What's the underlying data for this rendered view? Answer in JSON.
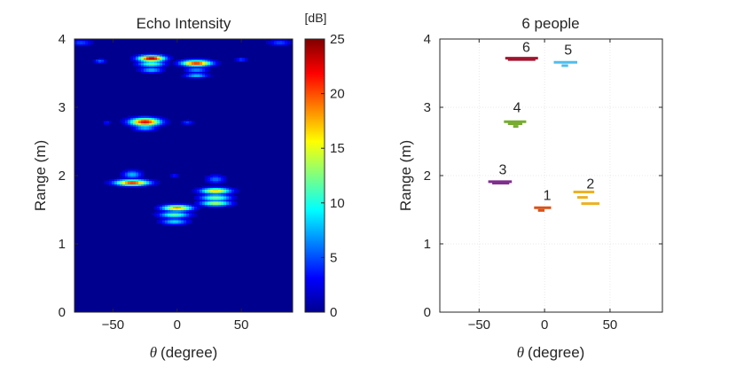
{
  "chart_data": [
    {
      "type": "heatmap",
      "title": "Echo Intensity",
      "xlabel_symbol": "θ",
      "xlabel": "(degree)",
      "ylabel": "Range (m)",
      "xlim": [
        -80,
        90
      ],
      "ylim": [
        0,
        4
      ],
      "xticks": [
        "-50",
        "0",
        "50"
      ],
      "yticks": [
        "0",
        "1",
        "2",
        "3",
        "4"
      ],
      "colorbar": {
        "unit": "[dB]",
        "range": [
          0,
          25
        ],
        "ticks": [
          "0",
          "5",
          "10",
          "15",
          "20",
          "25"
        ]
      },
      "colormap": [
        "#00008f",
        "#0000ff",
        "#0080ff",
        "#00ffff",
        "#80ff80",
        "#ffff00",
        "#ff8000",
        "#ff0000",
        "#800000"
      ],
      "blobs": [
        {
          "x": -20,
          "y": 3.72,
          "peak": 25,
          "sx": 7,
          "sy": 0.03
        },
        {
          "x": -20,
          "y": 3.64,
          "peak": 12,
          "sx": 7,
          "sy": 0.03
        },
        {
          "x": -20,
          "y": 3.55,
          "peak": 8,
          "sx": 6,
          "sy": 0.03
        },
        {
          "x": 15,
          "y": 3.65,
          "peak": 22,
          "sx": 8,
          "sy": 0.03
        },
        {
          "x": 15,
          "y": 3.55,
          "peak": 7,
          "sx": 6,
          "sy": 0.03
        },
        {
          "x": 15,
          "y": 3.47,
          "peak": 9,
          "sx": 6,
          "sy": 0.02
        },
        {
          "x": -25,
          "y": 2.79,
          "peak": 23,
          "sx": 8,
          "sy": 0.04
        },
        {
          "x": -25,
          "y": 2.7,
          "peak": 8,
          "sx": 6,
          "sy": 0.03
        },
        {
          "x": -35,
          "y": 1.9,
          "peak": 22,
          "sx": 9,
          "sy": 0.03
        },
        {
          "x": -35,
          "y": 2.02,
          "peak": 8,
          "sx": 5,
          "sy": 0.04
        },
        {
          "x": 30,
          "y": 1.78,
          "peak": 17,
          "sx": 8,
          "sy": 0.03
        },
        {
          "x": 30,
          "y": 1.68,
          "peak": 13,
          "sx": 8,
          "sy": 0.03
        },
        {
          "x": 30,
          "y": 1.6,
          "peak": 14,
          "sx": 8,
          "sy": 0.03
        },
        {
          "x": 30,
          "y": 1.95,
          "peak": 6,
          "sx": 5,
          "sy": 0.04
        },
        {
          "x": 0,
          "y": 1.53,
          "peak": 19,
          "sx": 8,
          "sy": 0.03
        },
        {
          "x": -2,
          "y": 1.43,
          "peak": 12,
          "sx": 8,
          "sy": 0.03
        },
        {
          "x": -2,
          "y": 1.33,
          "peak": 9,
          "sx": 7,
          "sy": 0.03
        },
        {
          "x": -60,
          "y": 3.68,
          "peak": 6,
          "sx": 3,
          "sy": 0.02
        },
        {
          "x": 50,
          "y": 3.7,
          "peak": 5,
          "sx": 3,
          "sy": 0.02
        },
        {
          "x": -55,
          "y": 2.78,
          "peak": 4,
          "sx": 2,
          "sy": 0.02
        },
        {
          "x": 8,
          "y": 2.78,
          "peak": 5,
          "sx": 3,
          "sy": 0.02
        },
        {
          "x": -2,
          "y": 2.0,
          "peak": 4,
          "sx": 2,
          "sy": 0.02
        },
        {
          "x": -75,
          "y": 3.95,
          "peak": 5,
          "sx": 6,
          "sy": 0.03
        },
        {
          "x": 80,
          "y": 3.95,
          "peak": 5,
          "sx": 6,
          "sy": 0.03
        }
      ]
    },
    {
      "type": "scatter",
      "title": "6 people",
      "xlabel_symbol": "θ",
      "xlabel": "(degree)",
      "ylabel": "Range (m)",
      "xlim": [
        -80,
        90
      ],
      "ylim": [
        0,
        4
      ],
      "xticks": [
        "-50",
        "0",
        "50"
      ],
      "yticks": [
        "0",
        "1",
        "2",
        "3",
        "4"
      ],
      "grid": true,
      "people": [
        {
          "label": "1",
          "color": "#d95319",
          "segments": [
            {
              "x1": -8,
              "x2": 5,
              "y": 1.53
            },
            {
              "x1": -5,
              "x2": 0,
              "y": 1.49
            }
          ],
          "label_x": 2,
          "label_y": 1.64
        },
        {
          "label": "2",
          "color": "#edb120",
          "segments": [
            {
              "x1": 22,
              "x2": 38,
              "y": 1.76
            },
            {
              "x1": 25,
              "x2": 33,
              "y": 1.68
            },
            {
              "x1": 28,
              "x2": 42,
              "y": 1.59
            }
          ],
          "label_x": 35,
          "label_y": 1.81
        },
        {
          "label": "3",
          "color": "#7e2f8e",
          "segments": [
            {
              "x1": -43,
              "x2": -25,
              "y": 1.91
            },
            {
              "x1": -40,
              "x2": -27,
              "y": 1.89
            }
          ],
          "label_x": -32,
          "label_y": 2.02
        },
        {
          "label": "4",
          "color": "#77ac30",
          "segments": [
            {
              "x1": -31,
              "x2": -14,
              "y": 2.79
            },
            {
              "x1": -28,
              "x2": -17,
              "y": 2.76
            },
            {
              "x1": -24,
              "x2": -20,
              "y": 2.72
            }
          ],
          "label_x": -21,
          "label_y": 2.93
        },
        {
          "label": "5",
          "color": "#4dbeee",
          "segments": [
            {
              "x1": 7,
              "x2": 25,
              "y": 3.66
            },
            {
              "x1": 13,
              "x2": 18,
              "y": 3.61
            }
          ],
          "label_x": 18,
          "label_y": 3.77
        },
        {
          "label": "6",
          "color": "#a2142f",
          "segments": [
            {
              "x1": -30,
              "x2": -5,
              "y": 3.72
            },
            {
              "x1": -28,
              "x2": -7,
              "y": 3.7
            }
          ],
          "label_x": -14,
          "label_y": 3.81
        }
      ]
    }
  ]
}
